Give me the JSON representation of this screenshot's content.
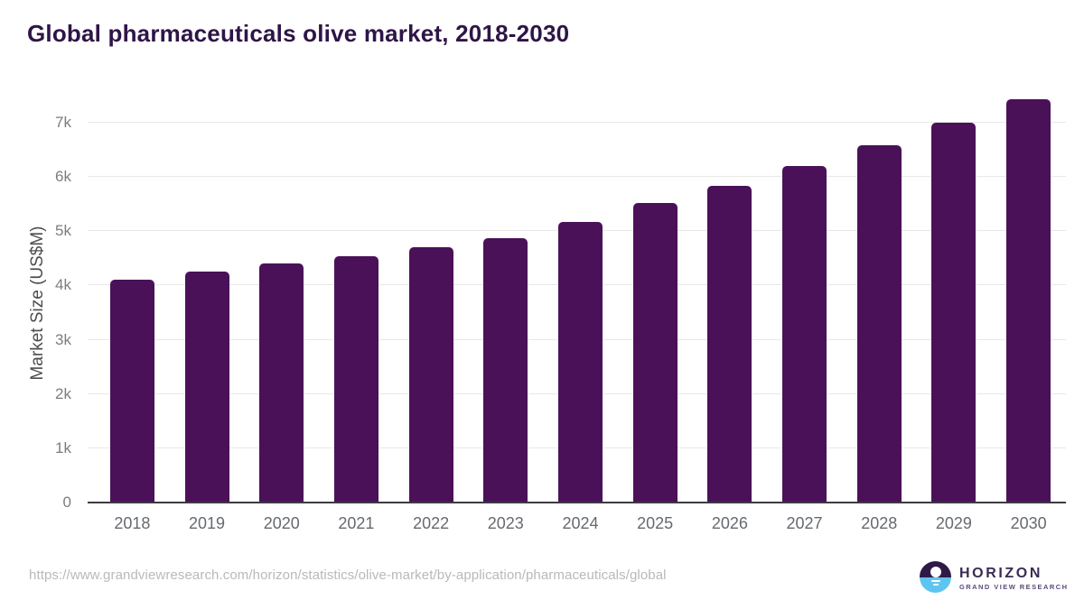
{
  "header": {
    "title": "Global pharmaceuticals olive market, 2018-2030"
  },
  "footer": {
    "source_url": "https://www.grandviewresearch.com/horizon/statistics/olive-market/by-application/pharmaceuticals/global",
    "logo": {
      "name": "HORIZON",
      "subtitle": "GRAND VIEW RESEARCH"
    }
  },
  "colors": {
    "bar": "#4a1159",
    "title_text": "#2e1547",
    "gridline": "#e8e8e8",
    "axis_line": "#3b3b43",
    "y_tick_label": "#7d7d7d",
    "x_tick_label": "#666a70",
    "axis_title": "#4d4d4d",
    "url_text": "#b9b9b9",
    "logo_circle_top": "#2e1a47",
    "logo_circle_bottom": "#5ec5f0",
    "logo_name_text": "#3b2a57",
    "logo_subtitle_text": "#5b4a79"
  },
  "chart_data": {
    "type": "bar",
    "title": "Global pharmaceuticals olive market, 2018-2030",
    "categories": [
      "2018",
      "2019",
      "2020",
      "2021",
      "2022",
      "2023",
      "2024",
      "2025",
      "2026",
      "2027",
      "2028",
      "2029",
      "2030"
    ],
    "values": [
      4110,
      4250,
      4400,
      4545,
      4710,
      4875,
      5180,
      5515,
      5845,
      6210,
      6590,
      7000,
      7430
    ],
    "xlabel": "",
    "ylabel": "Market Size (US$M)",
    "ylim": [
      0,
      7600
    ],
    "yticks": [
      0,
      1000,
      2000,
      3000,
      4000,
      5000,
      6000,
      7000
    ],
    "ytick_labels": [
      "0",
      "1k",
      "2k",
      "3k",
      "4k",
      "5k",
      "6k",
      "7k"
    ],
    "grid": true,
    "legend": "none",
    "bar_color": "#4a1159"
  }
}
